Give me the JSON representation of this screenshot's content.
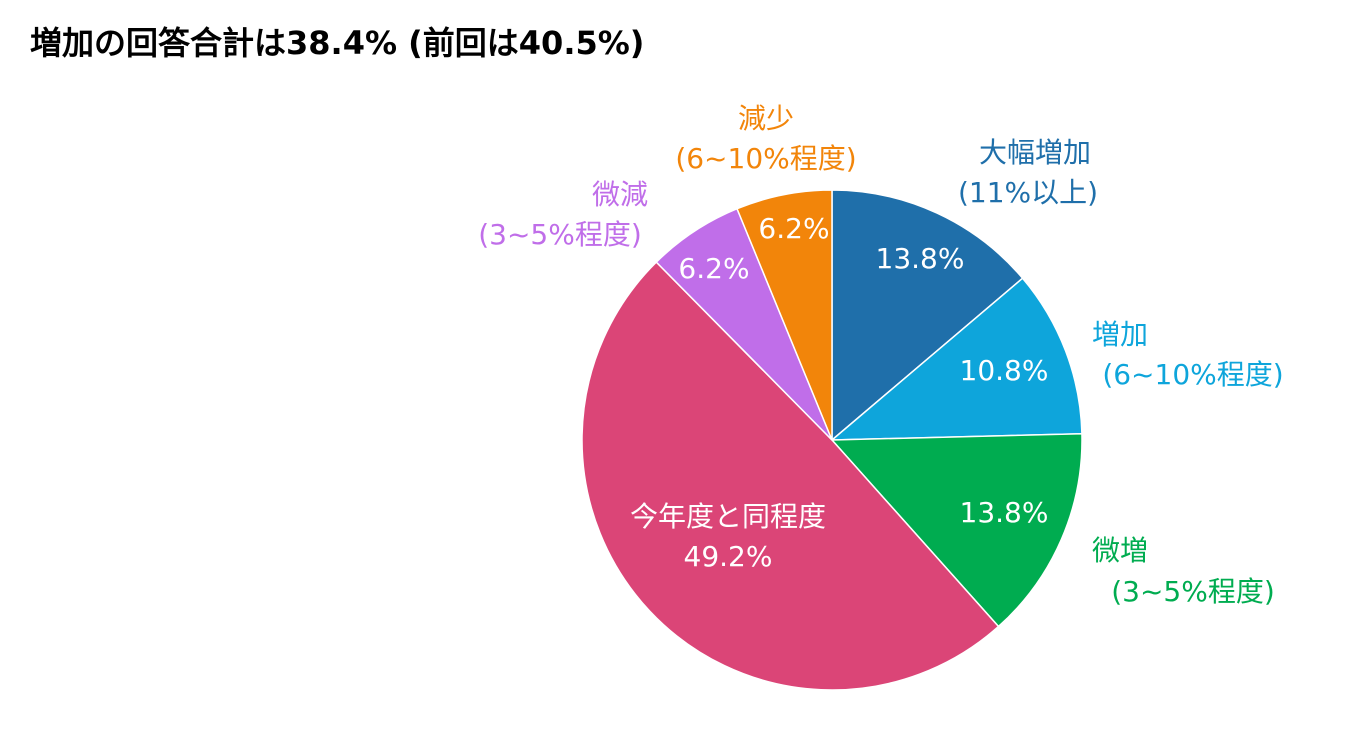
{
  "title": "増加の回答合計は38.4% (前回は40.5%)",
  "chart_data": {
    "type": "pie",
    "title": "増加の回答合計は38.4% (前回は40.5%)",
    "start_angle_deg": 0,
    "direction": "clockwise",
    "slices": [
      {
        "name": "大幅増加",
        "range": "(11%以上)",
        "value": 13.8,
        "label": "13.8%",
        "color": "#1f6faa",
        "label_color": "#1f6faa"
      },
      {
        "name": "増加",
        "range": "(6~10%程度)",
        "value": 10.8,
        "label": "10.8%",
        "color": "#0ea5db",
        "label_color": "#0ea5db"
      },
      {
        "name": "微増",
        "range": "(3~5%程度)",
        "value": 13.8,
        "label": "13.8%",
        "color": "#00ac50",
        "label_color": "#00ac50"
      },
      {
        "name": "今年度と同程度",
        "range": "",
        "value": 49.2,
        "label": "49.2%",
        "color": "#db4577",
        "label_color": "#ffffff"
      },
      {
        "name": "微減",
        "range": "(3~5%程度)",
        "value": 6.2,
        "label": "6.2%",
        "color": "#c06ee9",
        "label_color": "#c06ee9"
      },
      {
        "name": "減少",
        "range": "(6~10%程度)",
        "value": 6.2,
        "label": "6.2%",
        "color": "#f2850a",
        "label_color": "#f2850a"
      }
    ]
  }
}
